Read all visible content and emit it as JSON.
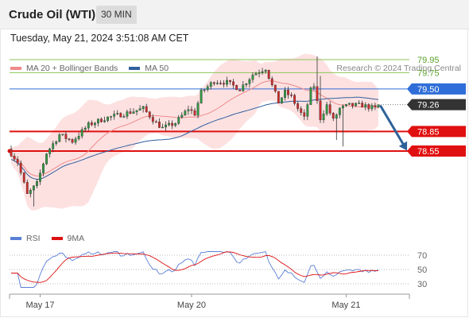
{
  "header": {
    "title": "Crude Oil (WTI)",
    "timeframe": "30 MIN",
    "timestamp": "Tuesday, May 21, 2024 3:51:08 AM CET"
  },
  "legend_main": [
    {
      "label": "MA 20 + Bollinger Bands",
      "color": "#f08a8a"
    },
    {
      "label": "MA 50",
      "color": "#2f5f9f"
    }
  ],
  "legend_rsi": [
    {
      "label": "RSI",
      "color": "#5a7fd6"
    },
    {
      "label": "9MA",
      "color": "#dd1111"
    }
  ],
  "credit": "Research © 2024 Trading Central",
  "colors": {
    "up": "#2f9a43",
    "down": "#d02b2b",
    "resistance": "#8dc65a",
    "pivot": "#2f6ed8",
    "support": "#e01010",
    "current": "#333333",
    "band": "#fde1e1",
    "arrow": "#2d6199"
  },
  "chart_data": [
    {
      "type": "candlestick",
      "ylim": [
        77.6,
        80.4
      ],
      "x_ticks": [
        "May 17",
        "May 20",
        "May 21"
      ],
      "levels": [
        {
          "value": 79.95,
          "label": "79.95",
          "role": "resistance"
        },
        {
          "value": 79.75,
          "label": "79.75",
          "role": "resistance"
        },
        {
          "value": 79.5,
          "label": "79.50",
          "role": "pivot"
        },
        {
          "value": 79.26,
          "label": "79.26",
          "role": "current"
        },
        {
          "value": 78.85,
          "label": "78.85",
          "role": "support"
        },
        {
          "value": 78.55,
          "label": "78.55",
          "role": "support"
        }
      ],
      "forecast_arrow": {
        "from": 79.26,
        "to": 78.55
      }
    },
    {
      "type": "line",
      "series": [
        {
          "name": "RSI"
        },
        {
          "name": "9MA"
        }
      ],
      "ylim": [
        20,
        80
      ],
      "y_ticks": [
        70,
        50,
        30
      ]
    }
  ]
}
